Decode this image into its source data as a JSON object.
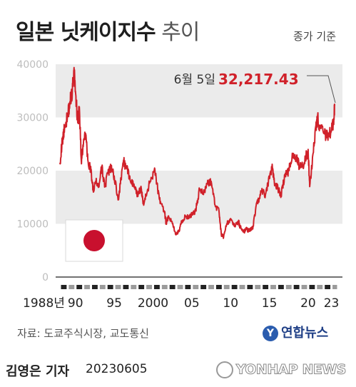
{
  "title_bold": "일본 닛케이지수",
  "title_light": "추이",
  "unit_label": "종가 기준",
  "annotation": {
    "date_label": "6월 5일",
    "value_label": "32,217.43"
  },
  "source": "자료: 도쿄주식시장, 교도통신",
  "logo": "연합뉴스",
  "reporter": "김영은 기자",
  "date": "20230605",
  "agency": "YONHAP NEWS",
  "flag_icon": "japan-flag-icon",
  "colors": {
    "line": "#d0212a",
    "band": "#ebebeb",
    "axis_text": "#bdbdbd",
    "dark_text": "#222222"
  },
  "chart_data": {
    "type": "line",
    "title": "일본 닛케이지수 추이",
    "ylim": [
      0,
      40000
    ],
    "yticks": [
      0,
      10000,
      20000,
      30000,
      40000
    ],
    "xlim": [
      1988,
      2023.5
    ],
    "xticks": [
      {
        "value": 1988,
        "label": "1988년"
      },
      {
        "value": 1990,
        "label": "90"
      },
      {
        "value": 1995,
        "label": "95"
      },
      {
        "value": 2000,
        "label": "2000"
      },
      {
        "value": 2005,
        "label": "05"
      },
      {
        "value": 2010,
        "label": "10"
      },
      {
        "value": 2015,
        "label": "15"
      },
      {
        "value": 2020,
        "label": "20"
      },
      {
        "value": 2023,
        "label": "23"
      }
    ],
    "series": [
      {
        "x": [
          1988.0,
          1988.3,
          1988.6,
          1989.0,
          1989.3,
          1989.6,
          1989.8,
          1990.0,
          1990.3,
          1990.5,
          1990.75,
          1991.0,
          1991.3,
          1991.6,
          1992.0,
          1992.3,
          1992.6,
          1993.0,
          1993.4,
          1993.8,
          1994.2,
          1994.6,
          1995.0,
          1995.5,
          1995.8,
          1996.2,
          1996.5,
          1997.0,
          1997.5,
          1998.0,
          1998.5,
          1998.8,
          1999.3,
          1999.8,
          2000.2,
          2000.6,
          2001.0,
          2001.5,
          2001.7,
          2002.0,
          2002.5,
          2003.0,
          2003.3,
          2003.7,
          2004.2,
          2004.6,
          2005.0,
          2005.5,
          2006.0,
          2006.5,
          2007.0,
          2007.5,
          2008.0,
          2008.5,
          2008.8,
          2009.1,
          2009.5,
          2010.0,
          2010.5,
          2011.0,
          2011.2,
          2011.7,
          2012.0,
          2012.5,
          2012.9,
          2013.3,
          2013.6,
          2014.0,
          2014.5,
          2015.0,
          2015.4,
          2015.7,
          2016.2,
          2016.5,
          2017.0,
          2017.5,
          2018.0,
          2018.5,
          2018.95,
          2019.5,
          2020.0,
          2020.2,
          2020.6,
          2021.0,
          2021.2,
          2021.5,
          2022.0,
          2022.5,
          2023.0,
          2023.25,
          2023.42
        ],
        "y": [
          21500,
          25500,
          28000,
          30500,
          33000,
          35000,
          38900,
          35000,
          29000,
          32000,
          22000,
          24500,
          27000,
          22000,
          20000,
          16000,
          18000,
          17000,
          20500,
          17000,
          19500,
          20500,
          19000,
          14500,
          17500,
          22000,
          20500,
          19000,
          17000,
          15500,
          16500,
          13500,
          16500,
          18500,
          20500,
          16500,
          13800,
          12000,
          10000,
          11500,
          10000,
          8000,
          8500,
          10500,
          11500,
          11000,
          11800,
          12500,
          16500,
          15500,
          17500,
          18000,
          13500,
          12500,
          8000,
          7500,
          10000,
          11000,
          9500,
          10500,
          9500,
          8500,
          9000,
          8700,
          9500,
          13500,
          14500,
          16000,
          15500,
          18500,
          20500,
          17500,
          16500,
          15500,
          19000,
          20000,
          23000,
          22500,
          20500,
          21500,
          24000,
          17000,
          23000,
          28500,
          30000,
          28000,
          27000,
          26500,
          27500,
          28800,
          32217
        ]
      }
    ]
  }
}
